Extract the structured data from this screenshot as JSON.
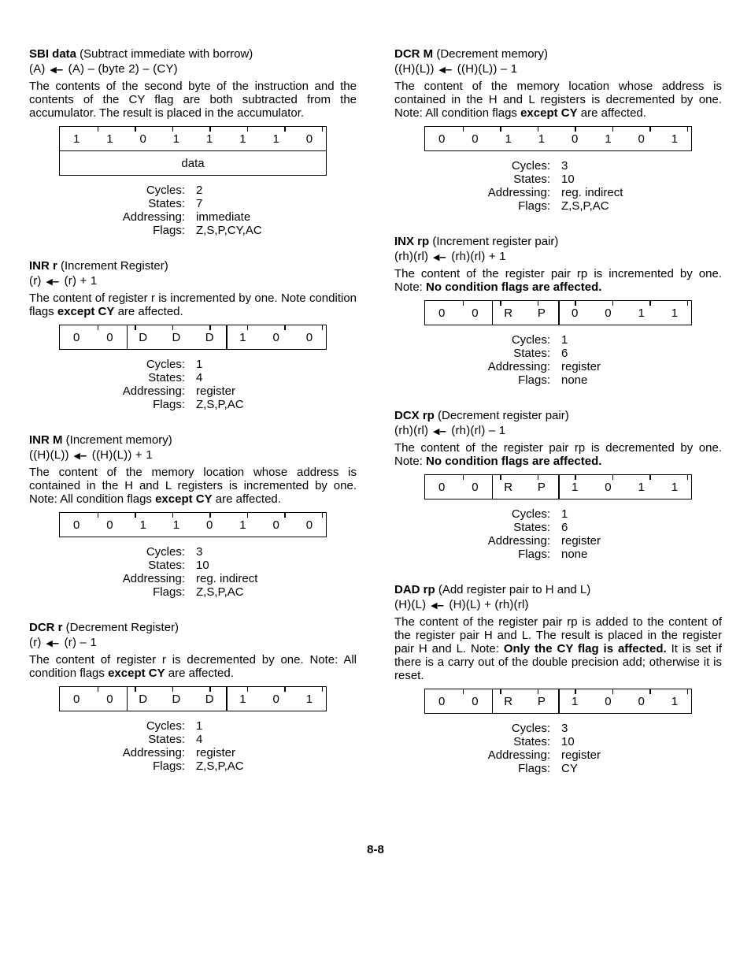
{
  "page_number": "8-8",
  "spec_labels": {
    "cycles": "Cycles:",
    "states": "States:",
    "addressing": "Addressing:",
    "flags": "Flags:"
  },
  "left": [
    {
      "key": "sbi",
      "name": "SBI data",
      "paren": "(Subtract immediate with borrow)",
      "operation": "(A) ←  (A) – (byte 2) – (CY)",
      "desc": "The contents of the second byte of the instruction and the contents of the CY flag are both subtracted from the accumulator. The result is placed in the accumulator.",
      "bold_phrases": [],
      "bit_rows": [
        {
          "cells": [
            "1",
            "1",
            "0",
            "1",
            "1",
            "1",
            "1",
            "0"
          ],
          "fullseps": []
        },
        {
          "cells": [
            "data"
          ],
          "is_data_row": true
        }
      ],
      "spec": {
        "cycles": "2",
        "states": "7",
        "addressing": "immediate",
        "flags": "Z,S,P,CY,AC"
      }
    },
    {
      "key": "inr_r",
      "name": "INR r",
      "paren": "(Increment Register)",
      "operation": "(r) ←  (r) + 1",
      "desc": "The content of register r is incremented by one. Note condition flags except CY are affected.",
      "bold_phrases": [
        "except CY"
      ],
      "bit_rows": [
        {
          "cells": [
            "0",
            "0",
            "D",
            "D",
            "D",
            "1",
            "0",
            "0"
          ],
          "fullseps": [
            2,
            5
          ]
        }
      ],
      "spec": {
        "cycles": "1",
        "states": "4",
        "addressing": "register",
        "flags": "Z,S,P,AC"
      }
    },
    {
      "key": "inr_m",
      "name": "INR M",
      "paren": "(Increment memory)",
      "operation": "((H)(L)) ←  ((H)(L)) + 1",
      "desc": "The content of the memory location whose address is contained in the H and L registers is incremented by one. Note: All condition flags except CY are affected.",
      "bold_phrases": [
        "except CY"
      ],
      "bit_rows": [
        {
          "cells": [
            "0",
            "0",
            "1",
            "1",
            "0",
            "1",
            "0",
            "0"
          ],
          "fullseps": []
        }
      ],
      "spec": {
        "cycles": "3",
        "states": "10",
        "addressing": "reg. indirect",
        "flags": "Z,S,P,AC"
      }
    },
    {
      "key": "dcr_r",
      "name": "DCR r",
      "paren": "(Decrement Register)",
      "operation": "(r) ←  (r) – 1",
      "desc": "The content of register r is decremented by one. Note: All condition flags except CY are affected.",
      "bold_phrases": [
        "except CY"
      ],
      "bit_rows": [
        {
          "cells": [
            "0",
            "0",
            "D",
            "D",
            "D",
            "1",
            "0",
            "1"
          ],
          "fullseps": [
            2,
            5
          ]
        }
      ],
      "spec": {
        "cycles": "1",
        "states": "4",
        "addressing": "register",
        "flags": "Z,S,P,AC"
      }
    }
  ],
  "right": [
    {
      "key": "dcr_m",
      "name": "DCR M",
      "paren": "(Decrement memory)",
      "operation": "((H)(L)) ←  ((H)(L)) – 1",
      "desc": "The content of the memory location whose address is contained in the H and L registers is decremented by one. Note: All condition flags except CY are affected.",
      "bold_phrases": [
        "except CY"
      ],
      "bit_rows": [
        {
          "cells": [
            "0",
            "0",
            "1",
            "1",
            "0",
            "1",
            "0",
            "1"
          ],
          "fullseps": []
        }
      ],
      "spec": {
        "cycles": "3",
        "states": "10",
        "addressing": "reg. indirect",
        "flags": "Z,S,P,AC"
      }
    },
    {
      "key": "inx_rp",
      "name": "INX rp",
      "paren": "(Increment register pair)",
      "operation": "(rh)(rl) ←  (rh)(rl) + 1",
      "desc": "The content of the register pair rp is incremented by one. Note: No condition flags are affected.",
      "bold_phrases": [
        "No condition flags are affected."
      ],
      "bit_rows": [
        {
          "cells": [
            "0",
            "0",
            "R",
            "P",
            "0",
            "0",
            "1",
            "1"
          ],
          "fullseps": [
            2,
            4
          ]
        }
      ],
      "spec": {
        "cycles": "1",
        "states": "6",
        "addressing": "register",
        "flags": "none"
      }
    },
    {
      "key": "dcx_rp",
      "name": "DCX rp",
      "paren": "(Decrement register pair)",
      "operation": "(rh)(rl) ←  (rh)(rl) – 1",
      "desc": "The content of the register pair rp is decremented by one. Note: No condition flags are affected.",
      "bold_phrases": [
        "No condition flags are affected."
      ],
      "bit_rows": [
        {
          "cells": [
            "0",
            "0",
            "R",
            "P",
            "1",
            "0",
            "1",
            "1"
          ],
          "fullseps": [
            2,
            4
          ]
        }
      ],
      "spec": {
        "cycles": "1",
        "states": "6",
        "addressing": "register",
        "flags": "none"
      }
    },
    {
      "key": "dad_rp",
      "name": "DAD rp",
      "paren": "(Add register pair to H and L)",
      "operation": "(H)(L) ←  (H)(L) + (rh)(rl)",
      "desc": "The content of the register pair rp is added to the content of the register pair H and L. The result is placed in the register pair H and L. Note: Only the CY flag is affected. It is set if there is a carry out of the double precision add; otherwise it is reset.",
      "bold_phrases": [
        "Only the CY flag is affected."
      ],
      "bit_rows": [
        {
          "cells": [
            "0",
            "0",
            "R",
            "P",
            "1",
            "0",
            "0",
            "1"
          ],
          "fullseps": [
            2,
            4
          ]
        }
      ],
      "spec": {
        "cycles": "3",
        "states": "10",
        "addressing": "register",
        "flags": "CY"
      }
    }
  ]
}
